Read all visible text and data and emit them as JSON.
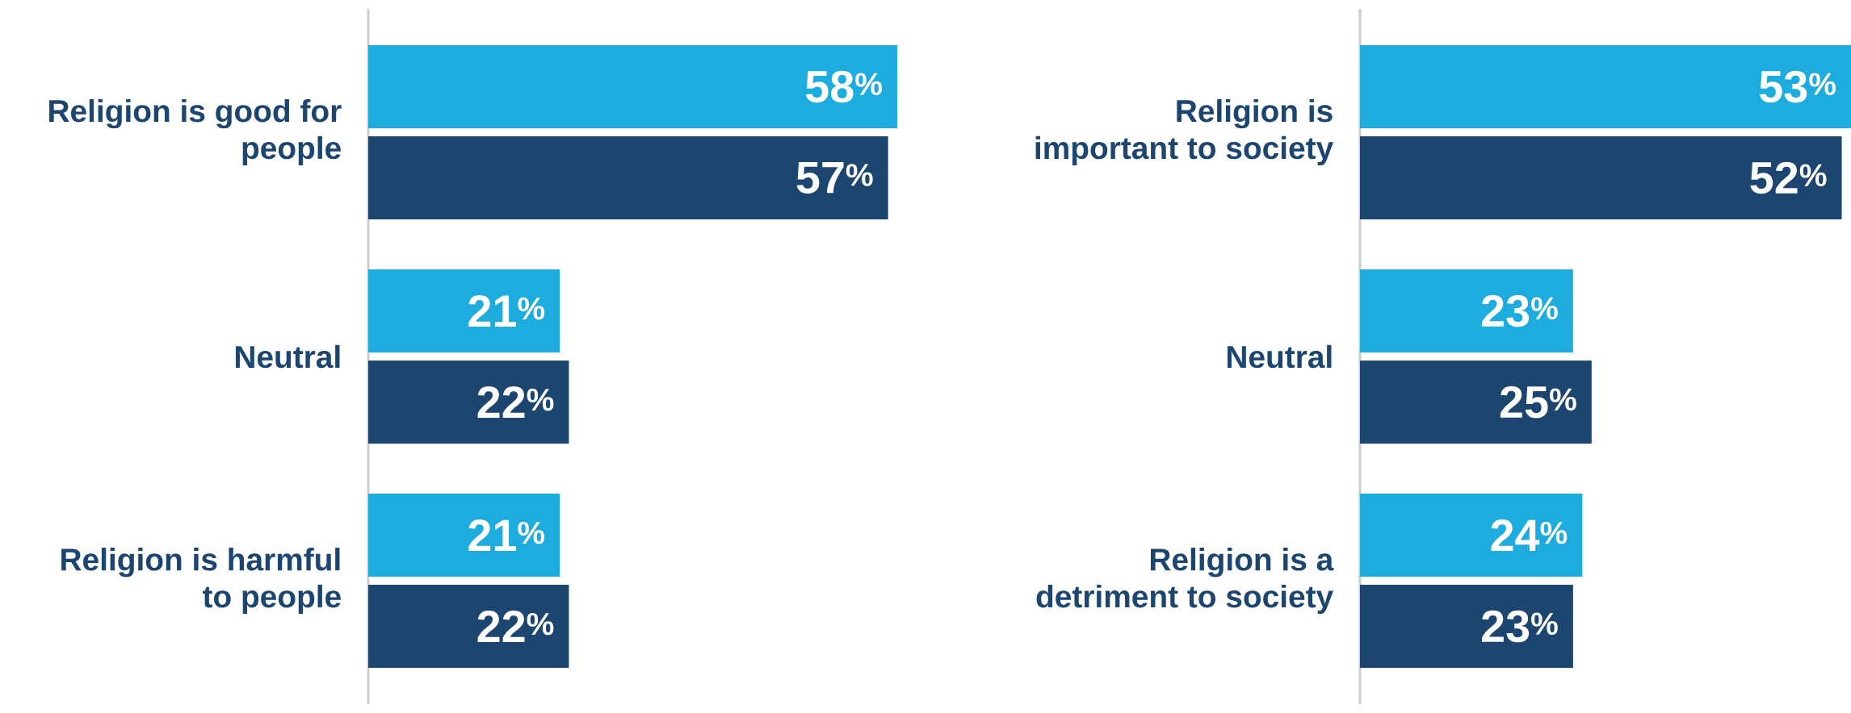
{
  "chart_data": [
    {
      "type": "bar",
      "orientation": "horizontal",
      "categories": [
        "Religion is good for people",
        "Neutral",
        "Religion is harmful to people"
      ],
      "xlim": [
        0,
        58
      ],
      "tick_labels": "y",
      "series": [
        {
          "color": "#1eacdf",
          "values": [
            58,
            21,
            21
          ],
          "value_labels": [
            "58$^{%}$",
            "21$^{%}$",
            "21$^{%}$"
          ]
        },
        {
          "color": "#1c4570",
          "values": [
            57,
            22,
            22
          ],
          "value_labels": [
            "57$^{%}$",
            "22$^{%}$",
            "22$^{%}$"
          ]
        }
      ]
    },
    {
      "type": "bar",
      "orientation": "horizontal",
      "categories": [
        "Religion is important to society",
        "Neutral",
        "Religion is a detriment to society"
      ],
      "xlim": [
        0,
        53
      ],
      "tick_labels": "y",
      "series": [
        {
          "color": "#1eacdf",
          "values": [
            53,
            23,
            24
          ],
          "value_labels": [
            "53$^{%}$",
            "23$^{%}$",
            "24$^{%}$"
          ]
        },
        {
          "color": "#1c4570",
          "values": [
            52,
            25,
            23
          ],
          "value_labels": [
            "52$^{%}$",
            "25$^{%}$",
            "23$^{%}$"
          ]
        }
      ]
    }
  ]
}
